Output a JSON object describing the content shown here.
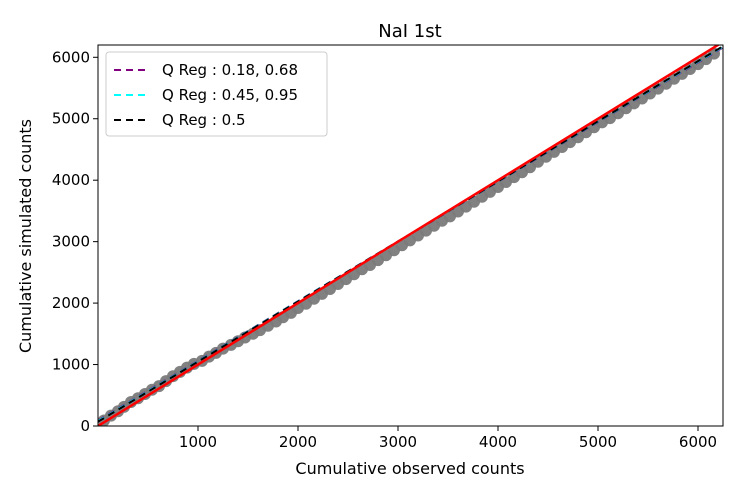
{
  "chart_data": {
    "type": "scatter",
    "title": "NaI 1st",
    "xlabel": "Cumulative observed counts",
    "ylabel": "Cumulative simulated counts",
    "xlim": [
      0,
      6250
    ],
    "ylim": [
      0,
      6200
    ],
    "xticks": [
      1000,
      2000,
      3000,
      4000,
      5000,
      6000
    ],
    "yticks": [
      0,
      1000,
      2000,
      3000,
      4000,
      5000,
      6000
    ],
    "grid": false,
    "legend_position": "top-left",
    "scatter": {
      "color": "#7a7a7a",
      "points": [
        [
          60,
          90
        ],
        [
          130,
          170
        ],
        [
          200,
          240
        ],
        [
          260,
          310
        ],
        [
          330,
          390
        ],
        [
          400,
          450
        ],
        [
          470,
          520
        ],
        [
          540,
          590
        ],
        [
          610,
          650
        ],
        [
          680,
          730
        ],
        [
          750,
          810
        ],
        [
          820,
          880
        ],
        [
          890,
          950
        ],
        [
          960,
          1010
        ],
        [
          1040,
          1060
        ],
        [
          1110,
          1130
        ],
        [
          1180,
          1190
        ],
        [
          1250,
          1260
        ],
        [
          1330,
          1320
        ],
        [
          1400,
          1380
        ],
        [
          1470,
          1440
        ],
        [
          1550,
          1500
        ],
        [
          1620,
          1560
        ],
        [
          1700,
          1630
        ],
        [
          1780,
          1700
        ],
        [
          1850,
          1770
        ],
        [
          1930,
          1840
        ],
        [
          2000,
          1920
        ],
        [
          2080,
          1990
        ],
        [
          2160,
          2070
        ],
        [
          2240,
          2150
        ],
        [
          2320,
          2230
        ],
        [
          2400,
          2310
        ],
        [
          2480,
          2390
        ],
        [
          2560,
          2470
        ],
        [
          2640,
          2550
        ],
        [
          2720,
          2620
        ],
        [
          2800,
          2700
        ],
        [
          2880,
          2780
        ],
        [
          2960,
          2860
        ],
        [
          3040,
          2940
        ],
        [
          3120,
          3020
        ],
        [
          3200,
          3100
        ],
        [
          3280,
          3180
        ],
        [
          3360,
          3260
        ],
        [
          3440,
          3340
        ],
        [
          3520,
          3410
        ],
        [
          3600,
          3490
        ],
        [
          3680,
          3570
        ],
        [
          3760,
          3650
        ],
        [
          3840,
          3730
        ],
        [
          3920,
          3810
        ],
        [
          4000,
          3890
        ],
        [
          4080,
          3970
        ],
        [
          4160,
          4050
        ],
        [
          4240,
          4130
        ],
        [
          4320,
          4210
        ],
        [
          4400,
          4300
        ],
        [
          4480,
          4380
        ],
        [
          4560,
          4460
        ],
        [
          4640,
          4540
        ],
        [
          4720,
          4620
        ],
        [
          4800,
          4700
        ],
        [
          4880,
          4780
        ],
        [
          4960,
          4860
        ],
        [
          5040,
          4940
        ],
        [
          5120,
          5010
        ],
        [
          5200,
          5090
        ],
        [
          5280,
          5170
        ],
        [
          5360,
          5250
        ],
        [
          5440,
          5330
        ],
        [
          5520,
          5410
        ],
        [
          5600,
          5490
        ],
        [
          5680,
          5570
        ],
        [
          5760,
          5650
        ],
        [
          5840,
          5730
        ],
        [
          5920,
          5810
        ],
        [
          6000,
          5890
        ],
        [
          6080,
          5970
        ],
        [
          6160,
          6060
        ]
      ]
    },
    "series": [
      {
        "name": "Q Reg : 0.18, 0.68",
        "color": "#800080",
        "dash": true,
        "x": [
          0,
          6250
        ],
        "y": [
          90,
          6160
        ]
      },
      {
        "name": "Q Reg : 0.45, 0.95",
        "color": "#00ffff",
        "dash": true,
        "x": [
          0,
          6250
        ],
        "y": [
          80,
          6170
        ]
      },
      {
        "name": "Q Reg : 0.5",
        "color": "#000000",
        "dash": true,
        "x": [
          0,
          6250
        ],
        "y": [
          70,
          6180
        ]
      },
      {
        "color": "#ff0000",
        "dash": false,
        "x": [
          0,
          6250
        ],
        "y": [
          0,
          6250
        ]
      }
    ]
  }
}
